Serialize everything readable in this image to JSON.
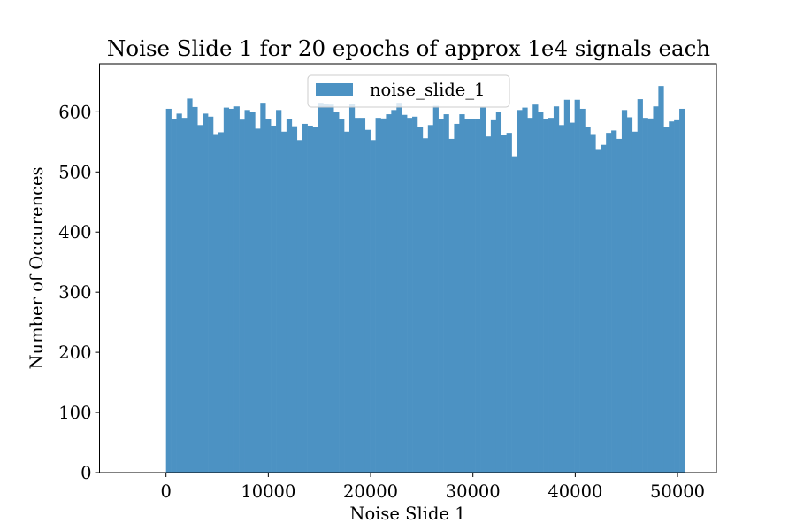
{
  "chart_data": {
    "type": "bar",
    "title": "Noise Slide 1 for 20 epochs of approx 1e4 signals each",
    "xlabel": "Noise Slide 1",
    "ylabel": "Number of Occurences",
    "xlim": [
      -6500,
      53800
    ],
    "ylim": [
      0,
      680
    ],
    "x_ticks": [
      0,
      10000,
      20000,
      30000,
      40000,
      50000
    ],
    "y_ticks": [
      0,
      100,
      200,
      300,
      400,
      500,
      600
    ],
    "legend_position": "upper center",
    "grid": false,
    "bar_color": "#4c92c3",
    "bin_start": 0,
    "bin_width": 512,
    "series": [
      {
        "name": "noise_slide_1",
        "values": [
          605,
          588,
          597,
          590,
          622,
          608,
          578,
          597,
          592,
          563,
          566,
          607,
          605,
          609,
          587,
          603,
          600,
          572,
          615,
          588,
          577,
          603,
          567,
          588,
          576,
          553,
          580,
          577,
          575,
          615,
          613,
          612,
          600,
          588,
          567,
          613,
          590,
          590,
          570,
          553,
          590,
          589,
          596,
          603,
          615,
          595,
          590,
          592,
          575,
          556,
          578,
          610,
          588,
          596,
          555,
          580,
          596,
          588,
          588,
          588,
          607,
          559,
          586,
          600,
          562,
          565,
          526,
          603,
          607,
          590,
          612,
          600,
          588,
          590,
          609,
          578,
          620,
          582,
          620,
          605,
          575,
          563,
          538,
          545,
          565,
          569,
          555,
          603,
          591,
          567,
          621,
          590,
          589,
          609,
          643,
          575,
          584,
          586,
          605
        ]
      }
    ]
  }
}
